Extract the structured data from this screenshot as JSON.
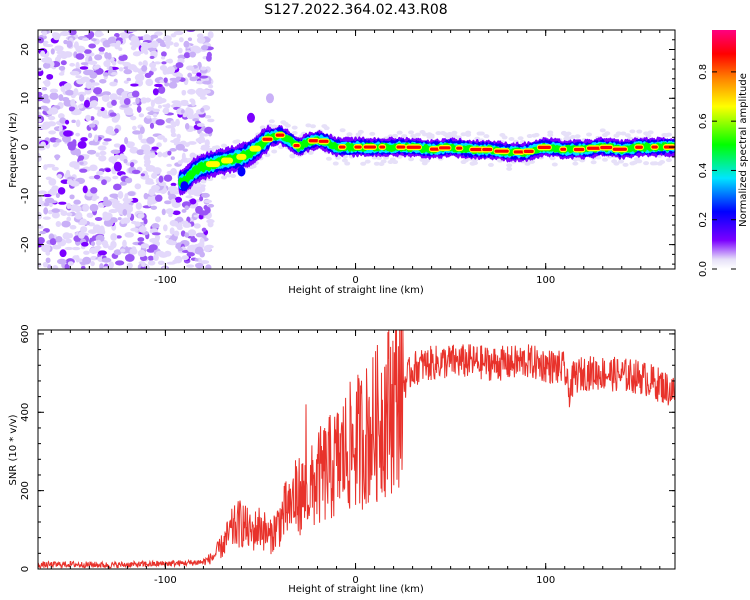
{
  "figure": {
    "title": "S127.2022.364.02.43.R08"
  },
  "chart_data": [
    {
      "type": "heatmap",
      "xlabel": "Height of straight line (km)",
      "ylabel": "Frequency (Hz)",
      "xlim": [
        -167,
        168
      ],
      "ylim": [
        -25,
        24
      ],
      "xticks": [
        -100,
        0,
        100
      ],
      "yticks": [
        -20,
        -10,
        0,
        10,
        20
      ],
      "colorbar": {
        "label": "Normalized spectral amplitude",
        "range": [
          0,
          0.97
        ],
        "ticks": [
          "0.0",
          "0.2",
          "0.4",
          "0.6",
          "0.8"
        ],
        "colors": [
          "#e6e0f8",
          "#7b00ff",
          "#0000ff",
          "#00e5ff",
          "#00ff00",
          "#ffff00",
          "#ff8000",
          "#ff0000",
          "#ff0080"
        ]
      },
      "noise_region_x": [
        -167,
        -80
      ],
      "ridge": {
        "x": [
          -90,
          -85,
          -80,
          -75,
          -70,
          -65,
          -60,
          -55,
          -50,
          -45,
          -40,
          -35,
          -30,
          -25,
          -20,
          -15,
          -10,
          0,
          10,
          20,
          30,
          40,
          50,
          60,
          70,
          80,
          90,
          100,
          110,
          120,
          130,
          140,
          150,
          160,
          168
        ],
        "frequency": [
          -7,
          -5,
          -4,
          -3.5,
          -3,
          -2.5,
          -2,
          -1,
          0.5,
          2,
          2.5,
          1.5,
          0,
          1,
          1.5,
          1,
          0,
          0,
          0,
          0,
          0,
          -0.5,
          0,
          -0.5,
          -0.5,
          -1,
          -1,
          0,
          -0.5,
          -0.5,
          0,
          -0.5,
          0,
          0,
          0
        ],
        "peak_amplitude": 0.97
      },
      "grid": false
    },
    {
      "type": "line",
      "xlabel": "Height of straight line (km)",
      "ylabel": "SNR (10 * v/v)",
      "xlim": [
        -167,
        168
      ],
      "ylim": [
        0,
        610
      ],
      "xticks": [
        -100,
        0,
        100
      ],
      "yticks": [
        0,
        200,
        400,
        600
      ],
      "series": [
        {
          "color": "#e8322b",
          "x": [
            -167,
            -150,
            -130,
            -110,
            -90,
            -80,
            -75,
            -70,
            -65,
            -60,
            -55,
            -50,
            -45,
            -40,
            -35,
            -30,
            -25,
            -20,
            -15,
            -10,
            -5,
            0,
            5,
            10,
            15,
            20,
            25,
            30,
            35,
            40,
            50,
            60,
            70,
            80,
            90,
            100,
            105,
            110,
            112,
            115,
            120,
            130,
            140,
            150,
            160,
            168
          ],
          "y": [
            10,
            12,
            10,
            12,
            15,
            18,
            30,
            60,
            100,
            120,
            90,
            110,
            80,
            120,
            160,
            190,
            190,
            230,
            250,
            270,
            300,
            320,
            340,
            360,
            400,
            430,
            470,
            510,
            520,
            525,
            530,
            530,
            525,
            525,
            530,
            520,
            515,
            510,
            450,
            490,
            500,
            500,
            495,
            490,
            470,
            450
          ]
        }
      ],
      "grid": false
    }
  ]
}
